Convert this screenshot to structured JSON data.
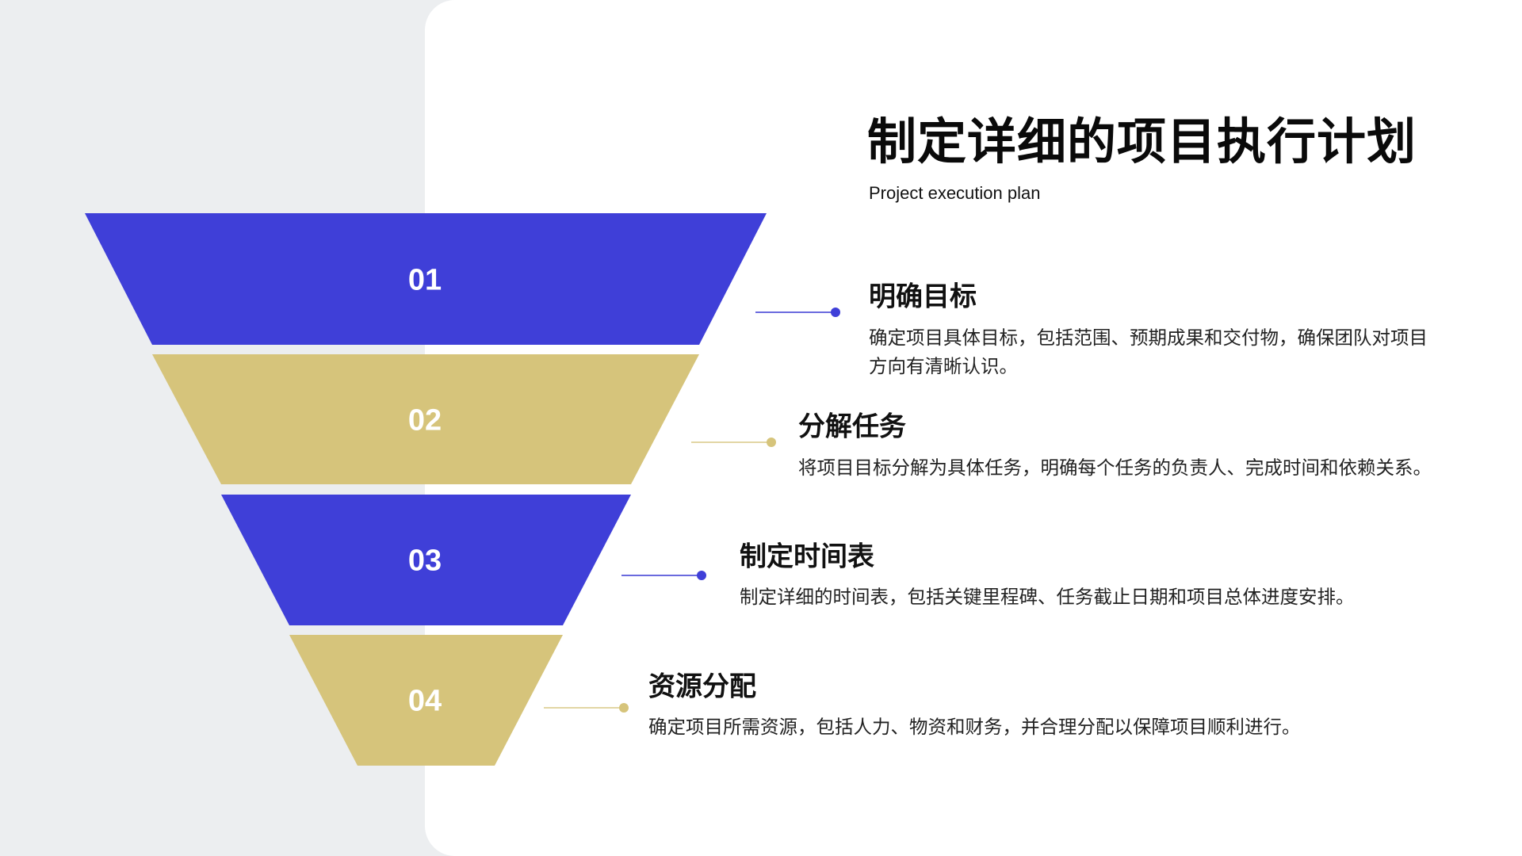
{
  "header": {
    "title": "制定详细的项目执行计划",
    "subtitle": "Project execution plan"
  },
  "colors": {
    "primary_blue": "#3f3fd8",
    "gold": "#d6c47b",
    "background": "#eceef0",
    "panel": "#ffffff"
  },
  "funnel": [
    {
      "number": "01",
      "color": "#3f3fd8"
    },
    {
      "number": "02",
      "color": "#d6c47b"
    },
    {
      "number": "03",
      "color": "#3f3fd8"
    },
    {
      "number": "04",
      "color": "#d6c47b"
    }
  ],
  "items": [
    {
      "title": "明确目标",
      "description": "确定项目具体目标，包括范围、预期成果和交付物，确保团队对项目方向有清晰认识。"
    },
    {
      "title": "分解任务",
      "description": "将项目目标分解为具体任务，明确每个任务的负责人、完成时间和依赖关系。"
    },
    {
      "title": "制定时间表",
      "description": "制定详细的时间表，包括关键里程碑、任务截止日期和项目总体进度安排。"
    },
    {
      "title": "资源分配",
      "description": "确定项目所需资源，包括人力、物资和财务，并合理分配以保障项目顺利进行。"
    }
  ]
}
